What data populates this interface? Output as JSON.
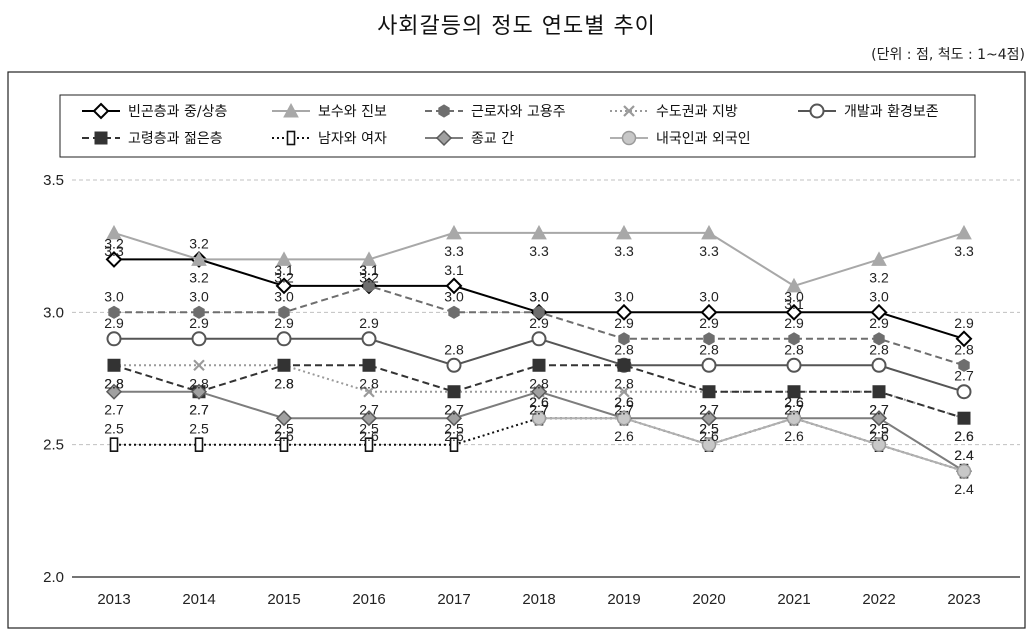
{
  "page": {
    "title": "사회갈등의 정도 연도별 추이",
    "unit": "(단위 : 점, 척도 : 1~4점)"
  },
  "chart_data": {
    "type": "line",
    "title": "사회갈등의 정도 연도별 추이",
    "unit_note": "(단위 : 점, 척도 : 1~4점)",
    "x": [
      "2013",
      "2014",
      "2015",
      "2016",
      "2017",
      "2018",
      "2019",
      "2020",
      "2021",
      "2022",
      "2023"
    ],
    "ylim": [
      2.0,
      3.5
    ],
    "yticks": [
      "2.0",
      "2.5",
      "3.0",
      "3.5"
    ],
    "grid": "horizontal dashed",
    "legend_placement": "top",
    "series": [
      {
        "name": "빈곤층과 중/상층",
        "values": [
          3.2,
          3.2,
          3.1,
          3.1,
          3.1,
          3.0,
          3.0,
          3.0,
          3.0,
          3.0,
          2.9
        ],
        "labels": [
          "3.2",
          "3.2",
          "3.1",
          "3.1",
          "3.1",
          "3.0",
          "3.0",
          "3.0",
          "3.0",
          "3.0",
          "2.9"
        ],
        "color": "#000000",
        "marker": "diamond-open",
        "dash": "solid"
      },
      {
        "name": "보수와 진보",
        "values": [
          3.3,
          3.2,
          3.2,
          3.2,
          3.3,
          3.3,
          3.3,
          3.3,
          3.1,
          3.2,
          3.3
        ],
        "labels": [
          "3.3",
          "3.2",
          "3.2",
          "3.2",
          "3.3",
          "3.3",
          "3.3",
          "3.3",
          "3.1",
          "3.2",
          "3.3"
        ],
        "color": "#a8a8a8",
        "marker": "triangle",
        "dash": "solid"
      },
      {
        "name": "근로자와 고용주",
        "values": [
          3.0,
          3.0,
          3.0,
          3.1,
          3.0,
          3.0,
          2.9,
          2.9,
          2.9,
          2.9,
          2.8
        ],
        "labels": [
          "3.0",
          "3.0",
          "3.0",
          "3.1",
          "3.0",
          "3.0",
          "2.9",
          "2.9",
          "2.9",
          "2.9",
          "2.8"
        ],
        "color": "#6e6e6e",
        "marker": "hexagon",
        "dash": "dashed"
      },
      {
        "name": "수도권과 지방",
        "values": [
          2.8,
          2.8,
          2.8,
          2.7,
          2.7,
          2.7,
          2.7,
          2.7,
          2.7,
          2.7,
          2.6
        ],
        "labels": [
          "2.8",
          "2.8",
          "2.8",
          "2.7",
          "2.7",
          "2.7",
          "2.7",
          "2.7",
          "2.7",
          "2.7",
          "2.6"
        ],
        "color": "#9a9a9a",
        "marker": "x",
        "dash": "dotted"
      },
      {
        "name": "개발과 환경보존",
        "values": [
          2.9,
          2.9,
          2.9,
          2.9,
          2.8,
          2.9,
          2.8,
          2.8,
          2.8,
          2.8,
          2.7
        ],
        "labels": [
          "2.9",
          "2.9",
          "2.9",
          "2.9",
          "2.8",
          "2.9",
          "2.8",
          "2.8",
          "2.8",
          "2.8",
          "2.7"
        ],
        "color": "#555555",
        "marker": "circle-open",
        "dash": "solid"
      },
      {
        "name": "고령층과 젊은층",
        "values": [
          2.8,
          2.7,
          2.8,
          2.8,
          2.7,
          2.8,
          2.8,
          2.7,
          2.7,
          2.7,
          2.6
        ],
        "labels": [
          "2.8",
          "2.7",
          "2.8",
          "2.8",
          "2.7",
          "2.8",
          "2.8",
          "2.7",
          "2.7",
          "2.7",
          "2.6"
        ],
        "color": "#333333",
        "marker": "square",
        "dash": "dashed"
      },
      {
        "name": "남자와 여자",
        "values": [
          2.5,
          2.5,
          2.5,
          2.5,
          2.5,
          2.6,
          2.6,
          2.5,
          2.6,
          2.5,
          2.4
        ],
        "labels": [
          "2.5",
          "2.5",
          "2.5",
          "2.5",
          "2.5",
          "2.6",
          "2.6",
          "2.5",
          "2.6",
          "2.5",
          "2.4"
        ],
        "color": "#111111",
        "marker": "rect-open",
        "dash": "dotted"
      },
      {
        "name": "종교 간",
        "values": [
          2.7,
          2.7,
          2.6,
          2.6,
          2.6,
          2.7,
          2.6,
          2.6,
          2.6,
          2.6,
          2.4
        ],
        "labels": [
          "2.7",
          "2.7",
          "2.6",
          "2.6",
          "2.6",
          "2.7",
          "2.6",
          "2.6",
          "2.6",
          "2.6",
          "2.4"
        ],
        "color": "#7d7d7d",
        "marker": "diamond-gray",
        "dash": "solid"
      },
      {
        "name": "내국인과 외국인",
        "values": [
          null,
          null,
          null,
          null,
          null,
          2.6,
          2.6,
          2.5,
          2.6,
          2.5,
          2.4
        ],
        "labels": [
          null,
          null,
          null,
          null,
          null,
          "2.6",
          "2.6",
          "2.5",
          "2.6",
          "2.5",
          "2.4"
        ],
        "color": "#b0b0b0",
        "marker": "circle-gray",
        "dash": "solid"
      }
    ]
  }
}
